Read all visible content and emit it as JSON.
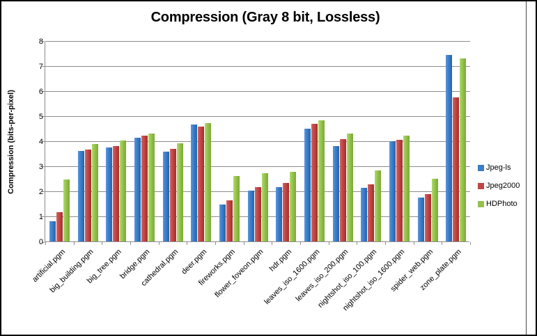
{
  "window": {
    "background": "#ffffff",
    "border_color": "#000000",
    "gridline_color": "#8c8c8c"
  },
  "chart_data": {
    "type": "bar",
    "title": "Compression (Gray 8 bit, Lossless)",
    "ylabel": "Compression (bits-per-pixel)",
    "xlabel": "",
    "ylim": [
      0,
      8
    ],
    "ytick_values": [
      0,
      1,
      2,
      3,
      4,
      5,
      6,
      7,
      8
    ],
    "grid": true,
    "legend_position": "right",
    "categories": [
      "artificial.pgm",
      "big_building.pgm",
      "big_tree.pgm",
      "bridge.pgm",
      "cathedral.pgm",
      "deer.pgm",
      "fireworks.pgm",
      "flower_foveon.pgm",
      "hdr.pgm",
      "leaves_iso_1600.pgm",
      "leaves_iso_200.pgm",
      "nightshot_iso_100.pgm",
      "nightshot_iso_1600.pgm",
      "spider_web.pgm",
      "zone_plate.pgm"
    ],
    "series": [
      {
        "name": "Jpeg-ls",
        "color": "#3d7cc6",
        "values": [
          0.8,
          3.6,
          3.74,
          4.15,
          3.57,
          4.66,
          1.48,
          2.03,
          2.17,
          4.49,
          3.81,
          2.13,
          4.0,
          1.76,
          7.45
        ]
      },
      {
        "name": "Jpeg2000",
        "color": "#be4745",
        "values": [
          1.18,
          3.66,
          3.8,
          4.21,
          3.7,
          4.59,
          1.64,
          2.18,
          2.34,
          4.7,
          4.09,
          2.29,
          4.05,
          1.9,
          5.76
        ]
      },
      {
        "name": "HDPhoto",
        "color": "#95c24e",
        "values": [
          2.48,
          3.88,
          4.02,
          4.31,
          3.91,
          4.73,
          2.6,
          2.71,
          2.79,
          4.83,
          4.31,
          2.82,
          4.21,
          2.51,
          7.3
        ]
      }
    ]
  }
}
